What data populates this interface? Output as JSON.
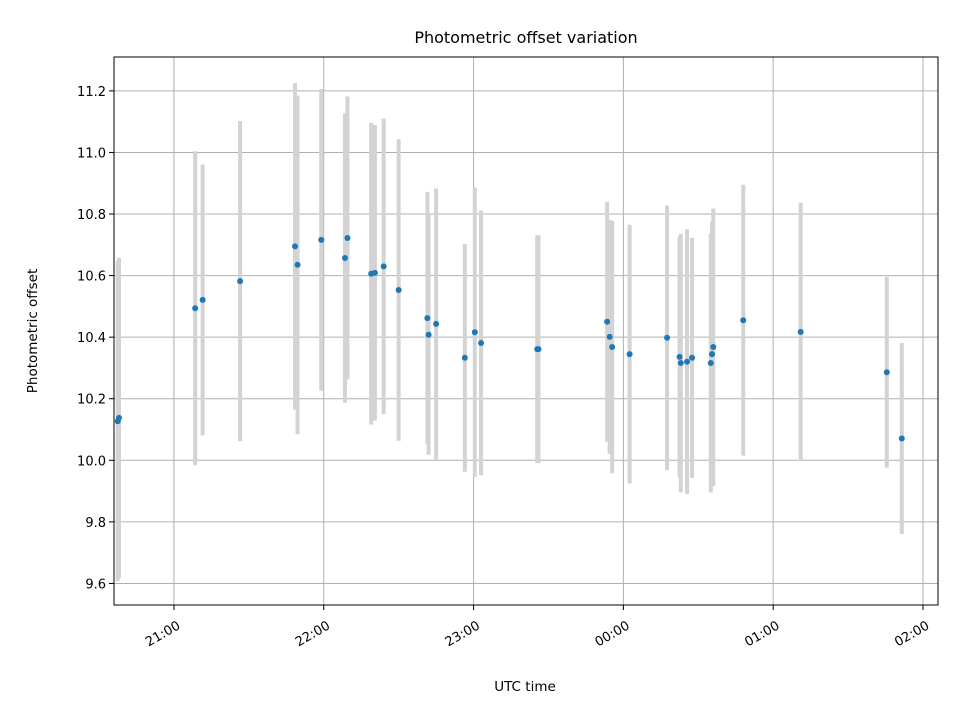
{
  "chart_data": {
    "type": "scatter",
    "title": "Photometric offset variation",
    "xlabel": "UTC time",
    "ylabel": "Photometric offset",
    "x_tick_labels": [
      "21:00",
      "22:00",
      "23:00",
      "00:00",
      "01:00",
      "02:00"
    ],
    "y_tick_labels": [
      "9.6",
      "9.8",
      "10.0",
      "10.2",
      "10.4",
      "10.6",
      "10.8",
      "11.0",
      "11.2"
    ],
    "x_ticks": [
      "21:00",
      "22:00",
      "23:00",
      "00:00",
      "01:00",
      "02:00"
    ],
    "xlim": [
      "20:36",
      "02:06"
    ],
    "y_ticks": [
      9.6,
      9.8,
      10.0,
      10.2,
      10.4,
      10.6,
      10.8,
      11.0,
      11.2
    ],
    "ylim": [
      9.53,
      11.31
    ],
    "grid": true,
    "colors": {
      "point": "#1f77b4",
      "errorbar": "#d3d3d3",
      "grid": "#b0b0b0"
    },
    "points": [
      {
        "x": "20:37:30",
        "y": 10.127,
        "yerr": 0.52
      },
      {
        "x": "20:38:00",
        "y": 10.138,
        "yerr": 0.52
      },
      {
        "x": "21:08:30",
        "y": 10.494,
        "yerr": 0.51
      },
      {
        "x": "21:11:30",
        "y": 10.521,
        "yerr": 0.44
      },
      {
        "x": "21:26:30",
        "y": 10.582,
        "yerr": 0.52
      },
      {
        "x": "21:48:30",
        "y": 10.695,
        "yerr": 0.53
      },
      {
        "x": "21:49:30",
        "y": 10.635,
        "yerr": 0.55
      },
      {
        "x": "21:59:00",
        "y": 10.716,
        "yerr": 0.49
      },
      {
        "x": "22:08:30",
        "y": 10.657,
        "yerr": 0.47
      },
      {
        "x": "22:09:30",
        "y": 10.722,
        "yerr": 0.46
      },
      {
        "x": "22:19:00",
        "y": 10.606,
        "yerr": 0.49
      },
      {
        "x": "22:20:30",
        "y": 10.609,
        "yerr": 0.48
      },
      {
        "x": "22:24:00",
        "y": 10.63,
        "yerr": 0.48
      },
      {
        "x": "22:30:00",
        "y": 10.553,
        "yerr": 0.49
      },
      {
        "x": "22:41:30",
        "y": 10.462,
        "yerr": 0.41
      },
      {
        "x": "22:42:00",
        "y": 10.408,
        "yerr": 0.39
      },
      {
        "x": "22:45:00",
        "y": 10.443,
        "yerr": 0.44
      },
      {
        "x": "22:56:30",
        "y": 10.333,
        "yerr": 0.37
      },
      {
        "x": "23:00:30",
        "y": 10.416,
        "yerr": 0.47
      },
      {
        "x": "23:03:00",
        "y": 10.381,
        "yerr": 0.43
      },
      {
        "x": "23:25:30",
        "y": 10.361,
        "yerr": 0.37
      },
      {
        "x": "23:26:00",
        "y": 10.361,
        "yerr": 0.37
      },
      {
        "x": "23:53:30",
        "y": 10.45,
        "yerr": 0.39
      },
      {
        "x": "23:54:30",
        "y": 10.401,
        "yerr": 0.38
      },
      {
        "x": "23:55:30",
        "y": 10.368,
        "yerr": 0.41
      },
      {
        "x": "00:02:30",
        "y": 10.345,
        "yerr": 0.42
      },
      {
        "x": "00:17:30",
        "y": 10.398,
        "yerr": 0.43
      },
      {
        "x": "00:22:30",
        "y": 10.336,
        "yerr": 0.39
      },
      {
        "x": "00:23:00",
        "y": 10.316,
        "yerr": 0.42
      },
      {
        "x": "00:25:30",
        "y": 10.32,
        "yerr": 0.43
      },
      {
        "x": "00:27:30",
        "y": 10.333,
        "yerr": 0.39
      },
      {
        "x": "00:35:00",
        "y": 10.316,
        "yerr": 0.42
      },
      {
        "x": "00:35:30",
        "y": 10.345,
        "yerr": 0.43
      },
      {
        "x": "00:36:00",
        "y": 10.368,
        "yerr": 0.45
      },
      {
        "x": "00:48:00",
        "y": 10.455,
        "yerr": 0.44
      },
      {
        "x": "01:11:00",
        "y": 10.417,
        "yerr": 0.42
      },
      {
        "x": "01:45:30",
        "y": 10.286,
        "yerr": 0.31
      },
      {
        "x": "01:51:30",
        "y": 10.071,
        "yerr": 0.31
      }
    ]
  }
}
